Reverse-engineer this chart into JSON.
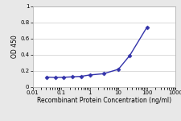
{
  "x": [
    0.031,
    0.063,
    0.125,
    0.25,
    0.5,
    1,
    3,
    10,
    25,
    100
  ],
  "y": [
    0.124,
    0.119,
    0.122,
    0.127,
    0.133,
    0.15,
    0.165,
    0.22,
    0.39,
    0.74
  ],
  "line_color": "#3333aa",
  "marker": "D",
  "marker_size": 2.5,
  "xlabel": "Recombinant Protein Concentration (ng/ml)",
  "ylabel": "OD 450",
  "xlim": [
    0.01,
    1000
  ],
  "ylim": [
    0,
    1
  ],
  "yticks": [
    0,
    0.2,
    0.4,
    0.6,
    0.8,
    1
  ],
  "xtick_locs": [
    0.01,
    0.1,
    1,
    10,
    100,
    1000
  ],
  "xtick_labels": [
    "0.01",
    "0.1",
    "1",
    "10",
    "100",
    "1000"
  ],
  "plot_bg": "#ffffff",
  "fig_bg": "#e8e8e8",
  "grid_color": "#cccccc",
  "axis_fontsize": 5.5,
  "tick_fontsize": 5.0,
  "linewidth": 1.0
}
